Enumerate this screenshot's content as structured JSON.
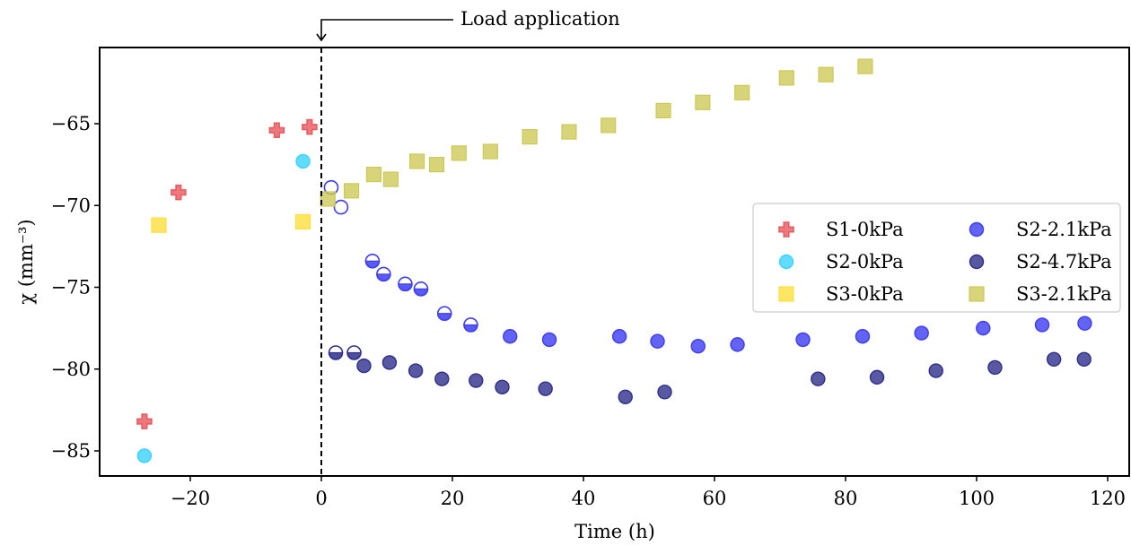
{
  "chart_data": {
    "type": "scatter",
    "xlabel": "Time (h)",
    "ylabel": "χ (mm⁻³)",
    "xlim": [
      -34,
      124
    ],
    "ylim": [
      -86.6,
      -60.8
    ],
    "xticks": [
      -20,
      0,
      20,
      40,
      60,
      80,
      100,
      120
    ],
    "yticks": [
      -85,
      -80,
      -75,
      -70,
      -65
    ],
    "xtick_labels": [
      "−20",
      "0",
      "20",
      "40",
      "60",
      "80",
      "100",
      "120"
    ],
    "ytick_labels": [
      "−85",
      "−80",
      "−75",
      "−70",
      "−65"
    ],
    "grid": false,
    "legend_position": "center-right",
    "annotation": {
      "text": "Load application",
      "x": 0
    },
    "series": [
      {
        "name": "S1-0kPa",
        "marker": "plus",
        "color": "#e8585e",
        "points": [
          [
            -27,
            -83.2
          ],
          [
            -21.8,
            -69.2
          ],
          [
            -6.8,
            -65.4
          ],
          [
            -1.8,
            -65.2
          ]
        ]
      },
      {
        "name": "S2-0kPa",
        "marker": "circle",
        "color": "#39d3ff",
        "points": [
          [
            -27,
            -85.3
          ],
          [
            -2.8,
            -67.3
          ]
        ]
      },
      {
        "name": "S3-0kPa",
        "marker": "square",
        "color": "#ffde3d",
        "points": [
          [
            -24.8,
            -71.2
          ],
          [
            -2.8,
            -71.0
          ]
        ]
      },
      {
        "name": "S2-2.1kPa",
        "marker": "circle",
        "color": "#3c3cf2",
        "points": [
          {
            "x": 1.5,
            "y": -68.9,
            "fill": "none"
          },
          {
            "x": 3.0,
            "y": -70.1,
            "fill": "none"
          },
          {
            "x": 7.8,
            "y": -73.4,
            "fill": "bottom"
          },
          {
            "x": 9.5,
            "y": -74.2,
            "fill": "bottom"
          },
          {
            "x": 12.8,
            "y": -74.8,
            "fill": "bottom"
          },
          {
            "x": 15.2,
            "y": -75.1,
            "fill": "bottom"
          },
          {
            "x": 18.8,
            "y": -76.6,
            "fill": "bottom"
          },
          {
            "x": 22.8,
            "y": -77.3,
            "fill": "bottom"
          },
          {
            "x": 28.8,
            "y": -78.0,
            "fill": "full"
          },
          {
            "x": 34.8,
            "y": -78.2,
            "fill": "full"
          },
          {
            "x": 45.5,
            "y": -78.0,
            "fill": "full"
          },
          {
            "x": 51.3,
            "y": -78.3,
            "fill": "full"
          },
          {
            "x": 57.5,
            "y": -78.6,
            "fill": "full"
          },
          {
            "x": 63.5,
            "y": -78.5,
            "fill": "full"
          },
          {
            "x": 73.5,
            "y": -78.2,
            "fill": "full"
          },
          {
            "x": 82.6,
            "y": -78.0,
            "fill": "full"
          },
          {
            "x": 91.6,
            "y": -77.8,
            "fill": "full"
          },
          {
            "x": 101.0,
            "y": -77.5,
            "fill": "full"
          },
          {
            "x": 110.0,
            "y": -77.3,
            "fill": "full"
          },
          {
            "x": 116.5,
            "y": -77.2,
            "fill": "full"
          }
        ]
      },
      {
        "name": "S2-4.7kPa",
        "marker": "circle",
        "color": "#2e2e8c",
        "points": [
          {
            "x": 2.2,
            "y": -79.0,
            "fill": "bottom"
          },
          {
            "x": 5.0,
            "y": -79.0,
            "fill": "bottom"
          },
          {
            "x": 6.5,
            "y": -79.8,
            "fill": "full"
          },
          {
            "x": 10.4,
            "y": -79.6,
            "fill": "full"
          },
          {
            "x": 14.4,
            "y": -80.1,
            "fill": "full"
          },
          {
            "x": 18.4,
            "y": -80.6,
            "fill": "full"
          },
          {
            "x": 23.6,
            "y": -80.7,
            "fill": "full"
          },
          {
            "x": 27.6,
            "y": -81.1,
            "fill": "full"
          },
          {
            "x": 34.2,
            "y": -81.2,
            "fill": "full"
          },
          {
            "x": 46.4,
            "y": -81.7,
            "fill": "full"
          },
          {
            "x": 52.4,
            "y": -81.4,
            "fill": "full"
          },
          {
            "x": 75.8,
            "y": -80.6,
            "fill": "full"
          },
          {
            "x": 84.8,
            "y": -80.5,
            "fill": "full"
          },
          {
            "x": 93.8,
            "y": -80.1,
            "fill": "full"
          },
          {
            "x": 102.8,
            "y": -79.9,
            "fill": "full"
          },
          {
            "x": 111.8,
            "y": -79.4,
            "fill": "full"
          },
          {
            "x": 116.4,
            "y": -79.4,
            "fill": "full"
          }
        ]
      },
      {
        "name": "S3-2.1kPa",
        "marker": "square",
        "color": "#cdc957",
        "points": [
          [
            1.0,
            -69.6
          ],
          [
            4.6,
            -69.1
          ],
          [
            8.0,
            -68.1
          ],
          [
            10.6,
            -68.4
          ],
          [
            14.6,
            -67.3
          ],
          [
            17.6,
            -67.5
          ],
          [
            21.0,
            -66.8
          ],
          [
            25.8,
            -66.7
          ],
          [
            31.8,
            -65.8
          ],
          [
            37.8,
            -65.5
          ],
          [
            43.8,
            -65.1
          ],
          [
            52.2,
            -64.2
          ],
          [
            58.2,
            -63.7
          ],
          [
            64.2,
            -63.1
          ],
          [
            71.0,
            -62.2
          ],
          [
            77.0,
            -62.0
          ],
          [
            83.0,
            -61.5
          ]
        ]
      }
    ]
  }
}
